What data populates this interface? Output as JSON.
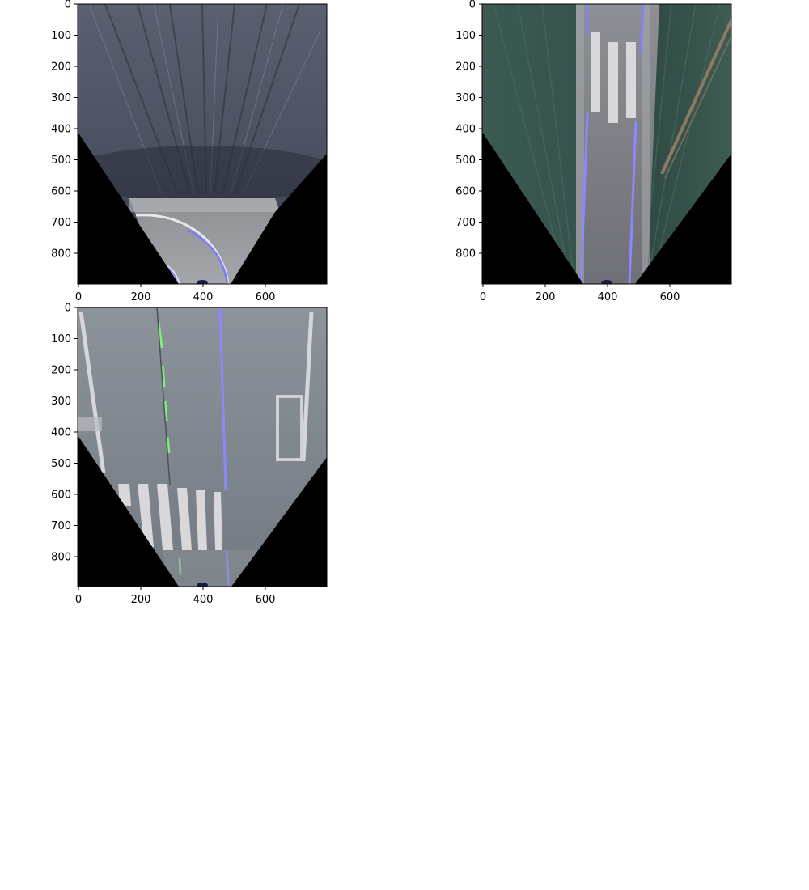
{
  "figure": {
    "background": "#ffffff",
    "panels": [
      {
        "id": "panel-1",
        "scene": "curved-road-asphalt",
        "x_ticks": [
          "0",
          "200",
          "400",
          "600"
        ],
        "y_ticks": [
          "0",
          "100",
          "200",
          "300",
          "400",
          "500",
          "600",
          "700",
          "800"
        ]
      },
      {
        "id": "panel-2",
        "scene": "straight-lane-with-grass",
        "x_ticks": [
          "0",
          "200",
          "400",
          "600"
        ],
        "y_ticks": [
          "0",
          "100",
          "200",
          "300",
          "400",
          "500",
          "600",
          "700",
          "800"
        ]
      },
      {
        "id": "panel-3",
        "scene": "crosswalk-intersection",
        "x_ticks": [
          "0",
          "200",
          "400",
          "600"
        ],
        "y_ticks": [
          "0",
          "100",
          "200",
          "300",
          "400",
          "500",
          "600",
          "700",
          "800"
        ]
      }
    ]
  }
}
